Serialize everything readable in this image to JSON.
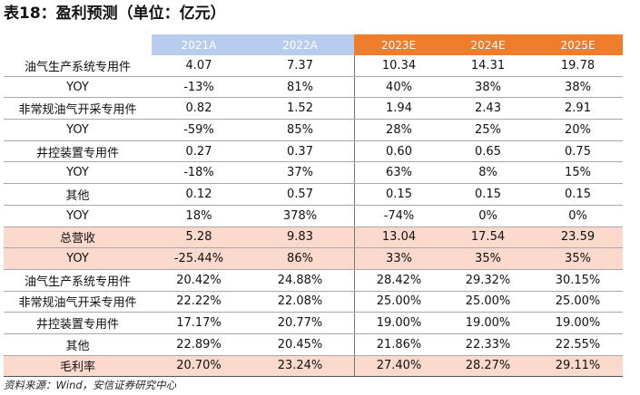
{
  "title": "表18：盈利预测（单位：亿元）",
  "header": [
    "",
    "2021A",
    "2022A",
    "2023E",
    "2024E",
    "2025E"
  ],
  "rows": [
    [
      "油气生产系统专用件",
      "4.07",
      "7.37",
      "10.34",
      "14.31",
      "19.78"
    ],
    [
      "YOY",
      "-13%",
      "81%",
      "40%",
      "38%",
      "38%"
    ],
    [
      "非常规油气开采专用件",
      "0.82",
      "1.52",
      "1.94",
      "2.43",
      "2.91"
    ],
    [
      "YOY",
      "-59%",
      "85%",
      "28%",
      "25%",
      "20%"
    ],
    [
      "井控装置专用件",
      "0.27",
      "0.37",
      "0.60",
      "0.65",
      "0.75"
    ],
    [
      "YOY",
      "-18%",
      "37%",
      "63%",
      "8%",
      "15%"
    ],
    [
      "其他",
      "0.12",
      "0.57",
      "0.15",
      "0.15",
      "0.15"
    ],
    [
      "YOY",
      "18%",
      "378%",
      "-74%",
      "0%",
      "0%"
    ],
    [
      "总营收",
      "5.28",
      "9.83",
      "13.04",
      "17.54",
      "23.59"
    ],
    [
      "YOY",
      "-25.44%",
      "86%",
      "33%",
      "35%",
      "35%"
    ],
    [
      "油气生产系统专用件",
      "20.42%",
      "24.88%",
      "28.42%",
      "29.32%",
      "30.15%"
    ],
    [
      "非常规油气开采专用件",
      "22.22%",
      "22.08%",
      "25.00%",
      "25.00%",
      "25.00%"
    ],
    [
      "井控装置专用件",
      "17.17%",
      "20.77%",
      "19.00%",
      "19.00%",
      "19.00%"
    ],
    [
      "其他",
      "22.89%",
      "20.45%",
      "21.86%",
      "22.33%",
      "22.55%"
    ],
    [
      "毛利率",
      "20.70%",
      "23.24%",
      "27.40%",
      "28.27%",
      "29.11%"
    ]
  ],
  "source": "资料来源：Wind，安信证券研究中心",
  "colors": {
    "actual_header": "#b8ccee",
    "estimate_header": "#ef7d2b",
    "highlight_row": "#fbd9cc"
  }
}
